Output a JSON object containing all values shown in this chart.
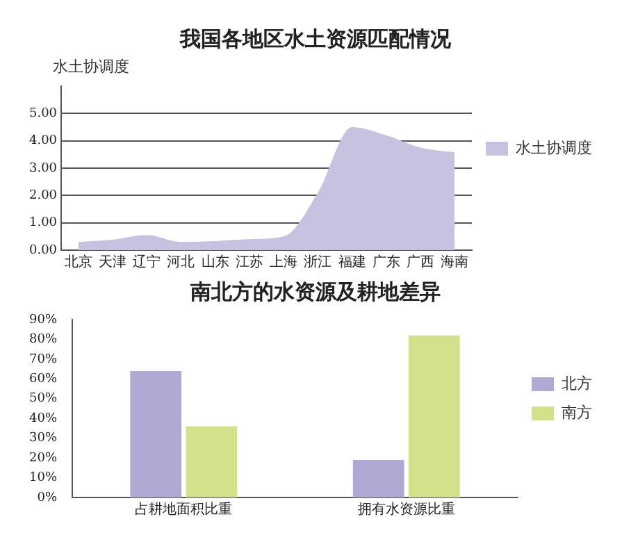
{
  "chart_data": [
    {
      "type": "area",
      "title": "我国各地区水土资源匹配情况",
      "ylabel": "水土协调度",
      "categories": [
        "北京",
        "天津",
        "辽宁",
        "河北",
        "山东",
        "江苏",
        "上海",
        "浙江",
        "福建",
        "广东",
        "广西",
        "海南"
      ],
      "series": [
        {
          "name": "水土协调度",
          "color": "#c5c3e0",
          "values": [
            0.3,
            0.38,
            0.55,
            0.3,
            0.33,
            0.4,
            0.5,
            2.1,
            4.5,
            4.2,
            3.75,
            3.58
          ]
        }
      ],
      "ylim": [
        0,
        6
      ],
      "yticks": [
        {
          "value": 0,
          "label": "0.00"
        },
        {
          "value": 1,
          "label": "1.00"
        },
        {
          "value": 2,
          "label": "2.00"
        },
        {
          "value": 3,
          "label": "3.00"
        },
        {
          "value": 4,
          "label": "4.00"
        },
        {
          "value": 5,
          "label": "5.00"
        }
      ],
      "grid": "y",
      "legend": "right"
    },
    {
      "type": "bar",
      "title": "南北方的水资源及耕地差异",
      "categories": [
        "占耕地面积比重",
        "拥有水资源比重"
      ],
      "series": [
        {
          "name": "北方",
          "color": "#b0a9d4",
          "values": [
            64,
            19
          ]
        },
        {
          "name": "南方",
          "color": "#d4e08a",
          "values": [
            36,
            82
          ]
        }
      ],
      "ylim": [
        0,
        90
      ],
      "yticks": [
        {
          "value": 0,
          "label": "0%"
        },
        {
          "value": 10,
          "label": "10%"
        },
        {
          "value": 20,
          "label": "20%"
        },
        {
          "value": 30,
          "label": "30%"
        },
        {
          "value": 40,
          "label": "40%"
        },
        {
          "value": 50,
          "label": "50%"
        },
        {
          "value": 60,
          "label": "60%"
        },
        {
          "value": 70,
          "label": "70%"
        },
        {
          "value": 80,
          "label": "80%"
        },
        {
          "value": 90,
          "label": "90%"
        }
      ],
      "grid": false,
      "legend": "right"
    }
  ]
}
